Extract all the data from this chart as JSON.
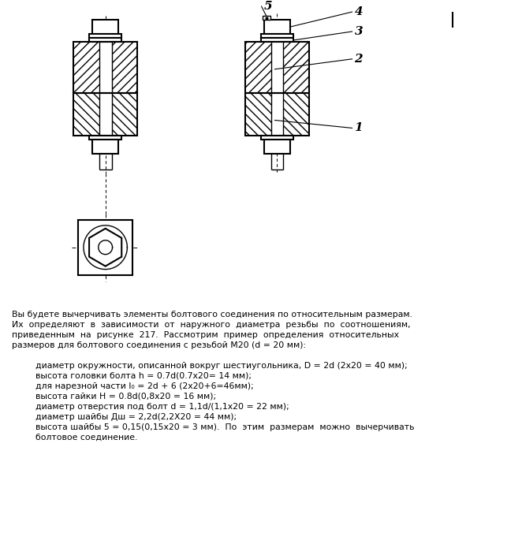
{
  "background_color": "#ffffff",
  "text_color": "#000000",
  "para1": "Вы будете вычерчивать элементы болтового соединения по относительным размерам.",
  "para2": "Их  определяют  в  зависимости  от  наружного  диаметра  резьбы  по  соотношениям,",
  "para3": "приведенным  на  рисунке  217.  Рассмотрим  пример  определения  относительных",
  "para4": "размеров для болтового соединения с резьбой М20 (d = 20 мм):",
  "bullet1": "диаметр окружности, описанной вокруг шестиугольника, D = 2d (2х20 = 40 мм);",
  "bullet2": "высота головки болта h = 0.7d(0.7х20= 14 мм);",
  "bullet3": "для нарезной части l₀ = 2d + 6 (2х20+6=46мм);",
  "bullet4": "высота гайки Н = 0.8d(0,8х20 = 16 мм);",
  "bullet5": "диаметр отверстия под болт d = 1,1d/(1,1х20 = 22 мм);",
  "bullet6": "диаметр шайбы Дш = 2,2d(2,2Х20 = 44 мм);",
  "bullet7": "высота шайбы 5 = 0,15(0,15х20 = 3 мм).  По  этим  размерам  можно  вычерчивать",
  "bullet8": "болтовое соединение.",
  "label1": "1",
  "label2": "2",
  "label3": "3",
  "label4": "4",
  "label5": "5"
}
